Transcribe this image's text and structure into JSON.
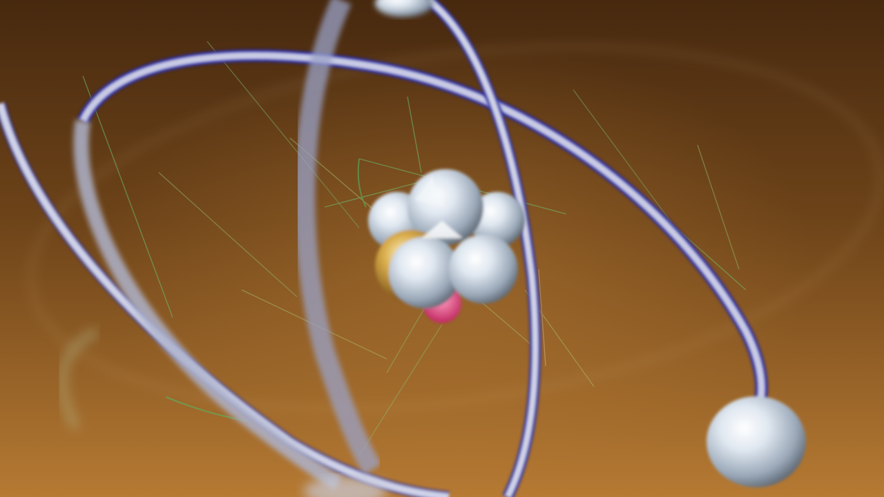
{
  "scene": {
    "subject": "atom model",
    "colors": {
      "background_top": "#4a2f12",
      "background_mid": "#7a4d1e",
      "background_bottom": "#b57a34",
      "orbit_ring": "#c9cbe4",
      "orbit_edge": "#2f2fa8",
      "nucleus": "#d8e2ee",
      "nucleus_accent_gold": "#c9952a",
      "nucleus_accent_pink": "#e05a8a",
      "trail_green": "#6fbf73",
      "electron": "#dfe6ee"
    }
  }
}
